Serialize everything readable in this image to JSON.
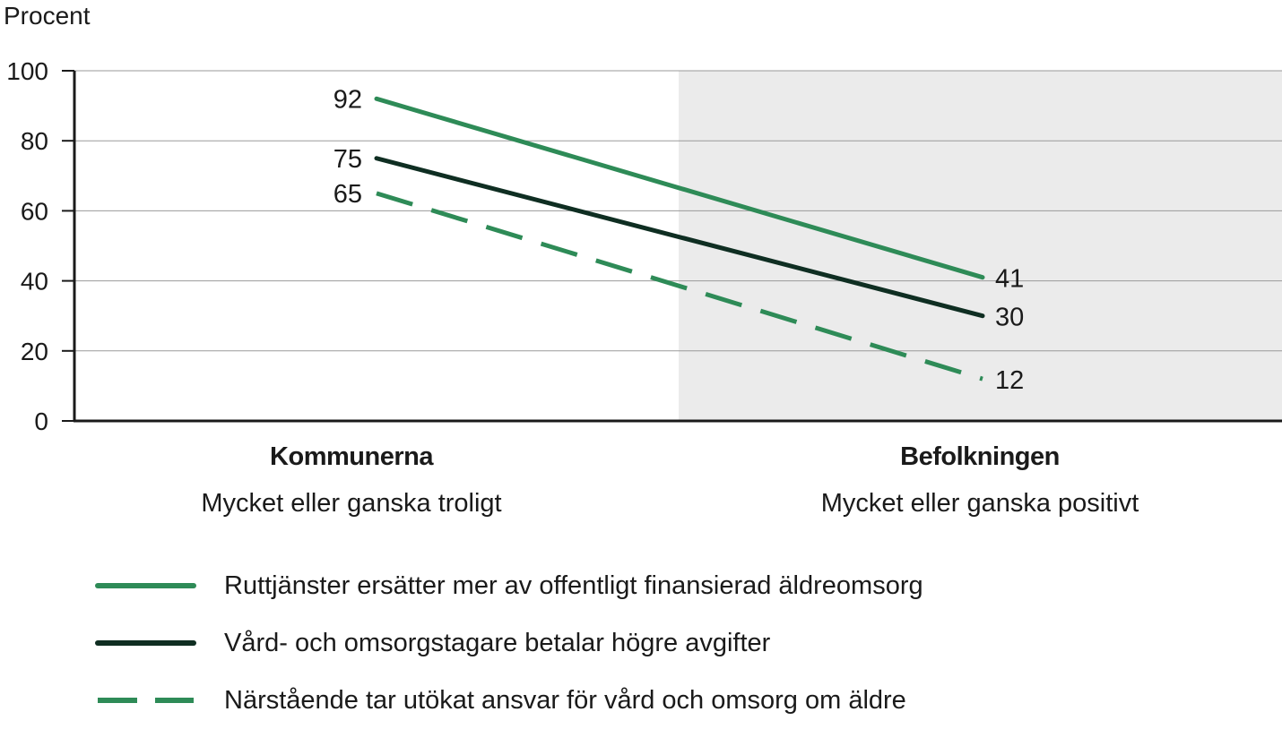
{
  "chart_data": {
    "type": "line",
    "ylabel": "Procent",
    "ylim": [
      0,
      100
    ],
    "yticks": [
      0,
      20,
      40,
      60,
      80,
      100
    ],
    "grid": true,
    "categories": [
      {
        "title": "Kommunerna",
        "subtitle": "Mycket eller ganska troligt"
      },
      {
        "title": "Befolkningen",
        "subtitle": "Mycket eller ganska positivt"
      }
    ],
    "series": [
      {
        "name": "Ruttjänster ersätter mer av offentligt finansierad äldreomsorg",
        "values": [
          92,
          41
        ],
        "color": "#2e8b57",
        "dash": false
      },
      {
        "name": "Vård- och omsorgstagare betalar högre avgifter",
        "values": [
          75,
          30
        ],
        "color": "#0f2e22",
        "dash": false
      },
      {
        "name": "Närstående tar utökat ansvar för vård och omsorg om äldre",
        "values": [
          65,
          12
        ],
        "color": "#2e8b57",
        "dash": true
      }
    ],
    "highlight_band_color": "#ebebeb",
    "legend_position": "bottom"
  }
}
